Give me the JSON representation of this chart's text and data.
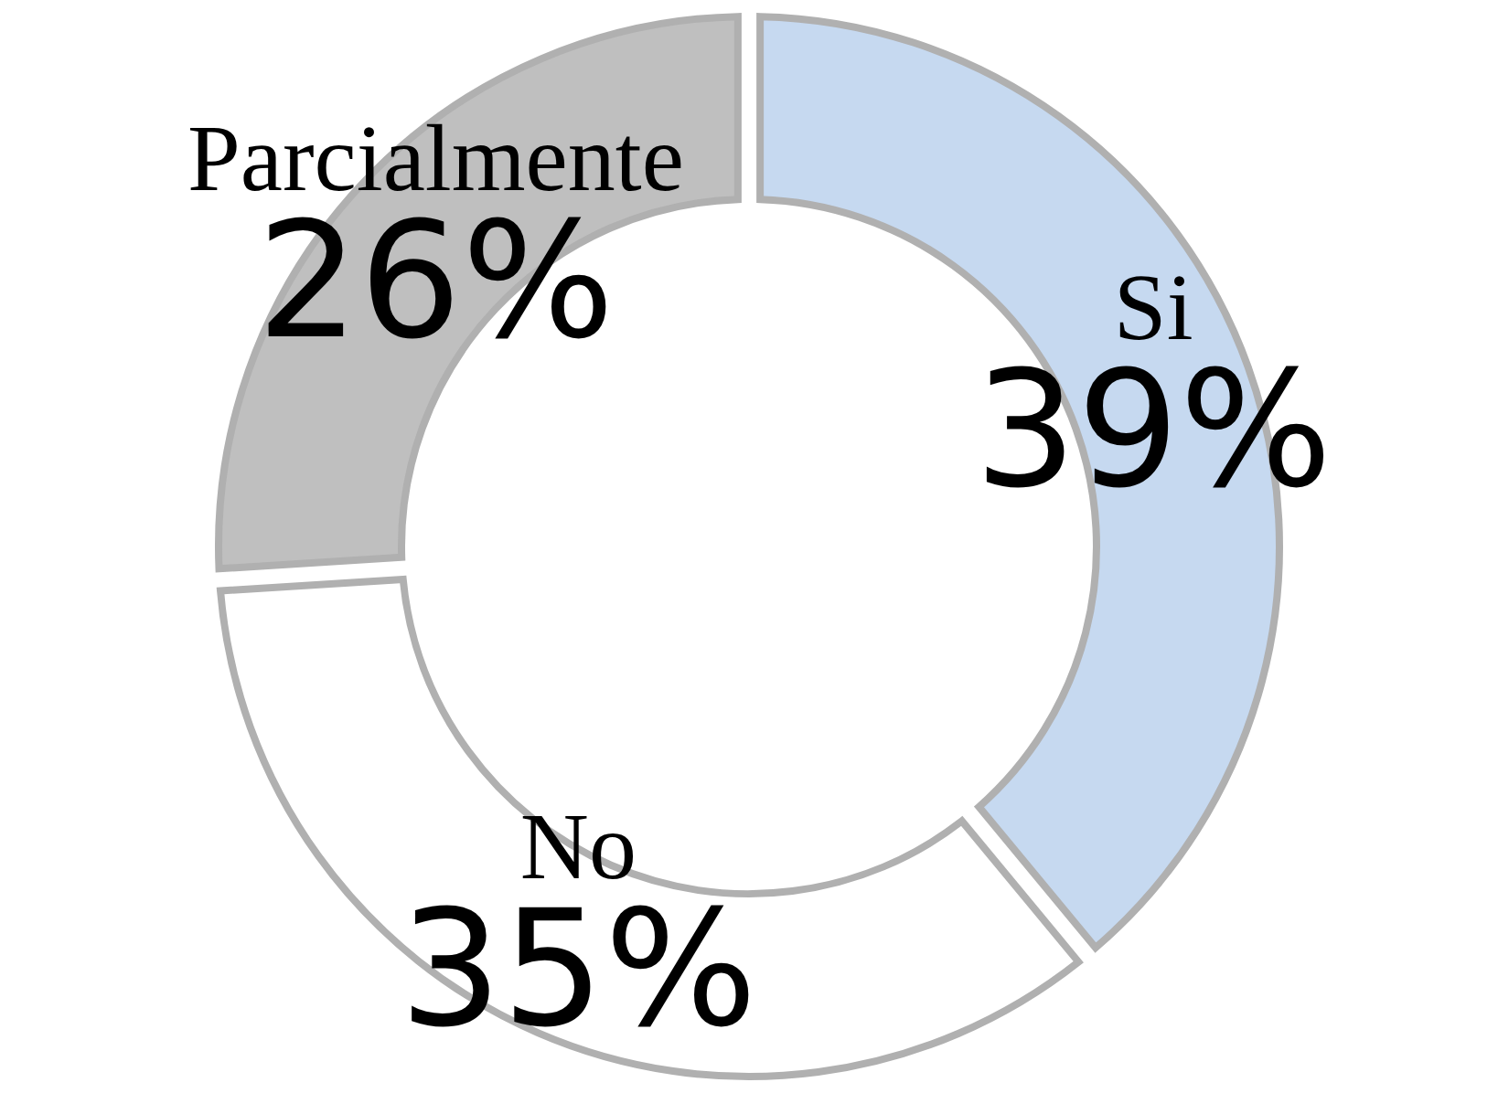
{
  "chart_data": {
    "type": "donut",
    "categories": [
      "Si",
      "No",
      "Parcialmente"
    ],
    "values": [
      39,
      35,
      26
    ],
    "value_labels": [
      "39%",
      "35%",
      "26%"
    ],
    "colors": [
      "#c6d9f0",
      "#ffffff",
      "#bfbfbf"
    ],
    "legend": false
  }
}
